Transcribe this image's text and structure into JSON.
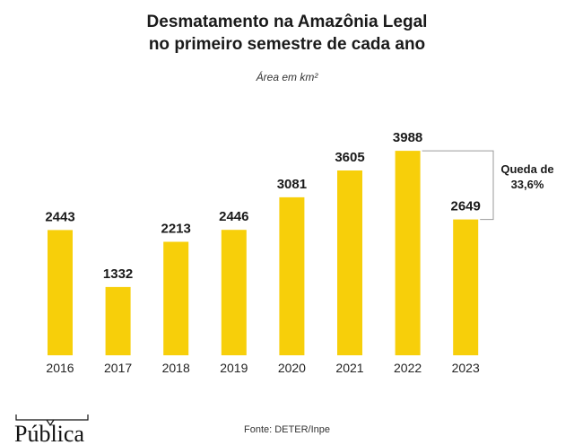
{
  "colors": {
    "bar": "#f7cf0a",
    "text": "#1a1a1a",
    "bracket": "#9a9a9a"
  },
  "chart_data": {
    "type": "bar",
    "title": [
      "Desmatamento na Amazônia Legal",
      "no primeiro semestre de cada ano"
    ],
    "subtitle": "Área em km²",
    "categories": [
      "2016",
      "2017",
      "2018",
      "2019",
      "2020",
      "2021",
      "2022",
      "2023"
    ],
    "values": [
      2443,
      1332,
      2213,
      2446,
      3081,
      3605,
      3988,
      2649
    ],
    "ylim": [
      0,
      4200
    ],
    "grid": false,
    "xlabel": "",
    "ylabel": "",
    "annotation": {
      "lines": [
        "Queda de",
        "33,6%"
      ],
      "from": "2022",
      "to": "2023"
    }
  },
  "source": "Fonte: DETER/Inpe",
  "logo": "Pública"
}
